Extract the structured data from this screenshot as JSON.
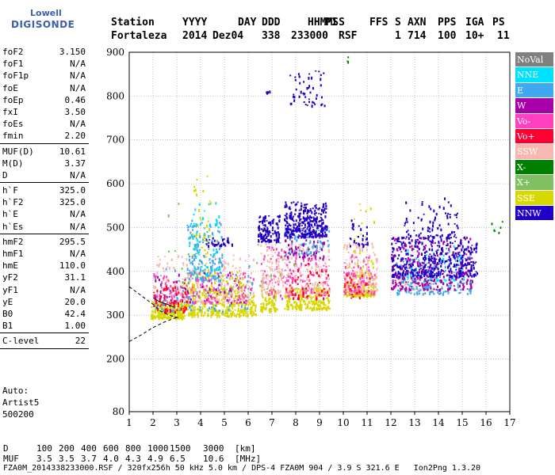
{
  "logo": {
    "line1": "Lowell",
    "line2": "DIGISONDE"
  },
  "header": {
    "labels": [
      "Station",
      "YYYY",
      "DAY",
      "DDD",
      "HHMMSS",
      "P1",
      "FFS",
      "S",
      "AXN",
      "PPS",
      "IGA",
      "PS"
    ],
    "values": [
      "Fortaleza",
      "2014",
      "Dez04",
      "338",
      "233000",
      "RSF",
      "",
      "1",
      "714",
      "100",
      "10+",
      "11"
    ]
  },
  "params_group1": [
    {
      "name": "foF2",
      "value": "3.150"
    },
    {
      "name": "foF1",
      "value": "N/A"
    },
    {
      "name": "foF1p",
      "value": "N/A"
    },
    {
      "name": "foE",
      "value": "N/A"
    },
    {
      "name": "foEp",
      "value": "0.46"
    },
    {
      "name": "fxI",
      "value": "3.50"
    },
    {
      "name": "foEs",
      "value": "N/A"
    },
    {
      "name": "fmin",
      "value": "2.20"
    }
  ],
  "params_group2": [
    {
      "name": "MUF(D)",
      "value": "10.61"
    },
    {
      "name": "M(D)",
      "value": "3.37"
    },
    {
      "name": "D",
      "value": "N/A"
    }
  ],
  "params_group3": [
    {
      "name": "h`F",
      "value": "325.0"
    },
    {
      "name": "h`F2",
      "value": "325.0"
    },
    {
      "name": "h`E",
      "value": "N/A"
    },
    {
      "name": "h`Es",
      "value": "N/A"
    }
  ],
  "params_group4": [
    {
      "name": "hmF2",
      "value": "295.5"
    },
    {
      "name": "hmF1",
      "value": "N/A"
    },
    {
      "name": "hmE",
      "value": "110.0"
    },
    {
      "name": "yF2",
      "value": "31.1"
    },
    {
      "name": "yF1",
      "value": "N/A"
    },
    {
      "name": "yE",
      "value": "20.0"
    },
    {
      "name": "B0",
      "value": "42.4"
    },
    {
      "name": "B1",
      "value": "1.00"
    }
  ],
  "params_group5": [
    {
      "name": "C-level",
      "value": "22"
    }
  ],
  "auto_block": {
    "line1": "Auto:",
    "line2": "Artist5",
    "line3": "500200"
  },
  "legend": [
    {
      "label": "NoVal",
      "color": "#808080"
    },
    {
      "label": "NNE",
      "color": "#00e0ff"
    },
    {
      "label": "E",
      "color": "#40a8f0"
    },
    {
      "label": "W",
      "color": "#a800a8"
    },
    {
      "label": "Vo-",
      "color": "#ff40c0"
    },
    {
      "label": "Vo+",
      "color": "#ff0030"
    },
    {
      "label": "SSW",
      "color": "#f8b8b0"
    },
    {
      "label": "X-",
      "color": "#008000"
    },
    {
      "label": "X+",
      "color": "#80c060"
    },
    {
      "label": "SSE",
      "color": "#d8d800"
    },
    {
      "label": "NNW",
      "color": "#2000c8"
    }
  ],
  "d_scale": {
    "d_label": "D",
    "d_values": [
      "100",
      "200",
      "400",
      "600",
      "800",
      "1000",
      "1500",
      "3000",
      "[km]"
    ],
    "muf_label": "MUF",
    "muf_values": [
      "3.5",
      "3.5",
      "3.7",
      "4.0",
      "4.3",
      "4.9",
      "6.5",
      "10.6",
      "[MHz]"
    ]
  },
  "footer": "FZA0M_2014338233000.RSF / 320fx256h 50 kHz 5.0 km / DPS-4 FZA0M 904 / 3.9 S 321.6 E   Ion2Png 1.3.20",
  "chart_data": {
    "type": "scatter",
    "xlim": [
      1,
      17
    ],
    "ylim": [
      80,
      900
    ],
    "x_ticks": [
      "1",
      "2",
      "3",
      "4",
      "5",
      "6",
      "7",
      "8",
      "9",
      "10",
      "11",
      "12",
      "13",
      "14",
      "15",
      "16",
      "17"
    ],
    "y_ticks": [
      "80",
      "200",
      "300",
      "400",
      "500",
      "600",
      "700",
      "800",
      "900"
    ],
    "y_tick_values": [
      80,
      200,
      300,
      400,
      500,
      600,
      700,
      800,
      900
    ],
    "grid": true,
    "legend_placement": "right",
    "clusters": [
      {
        "series": "SSE",
        "x": [
          1.9,
          3.3
        ],
        "y": [
          295,
          335
        ],
        "density": 260
      },
      {
        "series": "SSE",
        "x": [
          3.3,
          6.3
        ],
        "y": [
          300,
          350
        ],
        "density": 320
      },
      {
        "series": "SSE",
        "x": [
          6.5,
          7.2
        ],
        "y": [
          310,
          360
        ],
        "density": 90
      },
      {
        "series": "SSE",
        "x": [
          7.5,
          9.4
        ],
        "y": [
          315,
          365
        ],
        "density": 220
      },
      {
        "series": "SSE",
        "x": [
          10.0,
          11.3
        ],
        "y": [
          345,
          375
        ],
        "density": 140
      },
      {
        "series": "SSE",
        "x": [
          3.2,
          5.8
        ],
        "y": [
          350,
          400
        ],
        "density": 140
      },
      {
        "series": "SSE",
        "x": [
          3.6,
          4.4
        ],
        "y": [
          400,
          620
        ],
        "density": 40
      },
      {
        "series": "SSE",
        "x": [
          10.2,
          11.3
        ],
        "y": [
          380,
          560
        ],
        "density": 40
      },
      {
        "series": "SSW",
        "x": [
          2.0,
          6.2
        ],
        "y": [
          330,
          440
        ],
        "density": 260
      },
      {
        "series": "SSW",
        "x": [
          6.5,
          9.4
        ],
        "y": [
          350,
          470
        ],
        "density": 260
      },
      {
        "series": "SSW",
        "x": [
          10.0,
          11.4
        ],
        "y": [
          355,
          470
        ],
        "density": 160
      },
      {
        "series": "SSW",
        "x": [
          12.3,
          13.8
        ],
        "y": [
          360,
          420
        ],
        "density": 60
      },
      {
        "series": "E",
        "x": [
          3.4,
          4.9
        ],
        "y": [
          380,
          520
        ],
        "density": 160
      },
      {
        "series": "E",
        "x": [
          2.0,
          6.2
        ],
        "y": [
          310,
          420
        ],
        "density": 100
      },
      {
        "series": "E",
        "x": [
          12.2,
          15.4
        ],
        "y": [
          350,
          440
        ],
        "density": 200
      },
      {
        "series": "E",
        "x": [
          7.5,
          9.4
        ],
        "y": [
          440,
          500
        ],
        "density": 80
      },
      {
        "series": "NNE",
        "x": [
          3.4,
          4.8
        ],
        "y": [
          380,
          560
        ],
        "density": 60
      },
      {
        "series": "NNE",
        "x": [
          12.3,
          14.9
        ],
        "y": [
          380,
          460
        ],
        "density": 60
      },
      {
        "series": "W",
        "x": [
          12.0,
          15.4
        ],
        "y": [
          360,
          480
        ],
        "density": 300
      },
      {
        "series": "W",
        "x": [
          2.0,
          6.0
        ],
        "y": [
          330,
          400
        ],
        "density": 60
      },
      {
        "series": "W",
        "x": [
          7.5,
          9.2
        ],
        "y": [
          430,
          500
        ],
        "density": 70
      },
      {
        "series": "Vo-",
        "x": [
          2.0,
          6.2
        ],
        "y": [
          330,
          400
        ],
        "density": 130
      },
      {
        "series": "Vo-",
        "x": [
          6.5,
          9.4
        ],
        "y": [
          340,
          460
        ],
        "density": 120
      },
      {
        "series": "Vo-",
        "x": [
          10.0,
          11.4
        ],
        "y": [
          350,
          440
        ],
        "density": 80
      },
      {
        "series": "Vo+",
        "x": [
          2.0,
          3.4
        ],
        "y": [
          310,
          370
        ],
        "density": 60
      },
      {
        "series": "Vo+",
        "x": [
          7.5,
          9.4
        ],
        "y": [
          340,
          420
        ],
        "density": 50
      },
      {
        "series": "Vo+",
        "x": [
          10.0,
          11.2
        ],
        "y": [
          340,
          400
        ],
        "density": 30
      },
      {
        "series": "NNW",
        "x": [
          6.4,
          7.3
        ],
        "y": [
          470,
          530
        ],
        "density": 120
      },
      {
        "series": "NNW",
        "x": [
          7.5,
          9.3
        ],
        "y": [
          480,
          560
        ],
        "density": 320
      },
      {
        "series": "NNW",
        "x": [
          7.7,
          9.2
        ],
        "y": [
          780,
          860
        ],
        "density": 50
      },
      {
        "series": "NNW",
        "x": [
          12.0,
          15.6
        ],
        "y": [
          390,
          480
        ],
        "density": 360
      },
      {
        "series": "NNW",
        "x": [
          12.5,
          14.8
        ],
        "y": [
          480,
          570
        ],
        "density": 80
      },
      {
        "series": "NNW",
        "x": [
          4.2,
          5.3
        ],
        "y": [
          460,
          480
        ],
        "density": 30
      },
      {
        "series": "NNW",
        "x": [
          10.2,
          11.0
        ],
        "y": [
          460,
          520
        ],
        "density": 30
      },
      {
        "series": "X+",
        "x": [
          2.5,
          9.0
        ],
        "y": [
          360,
          560
        ],
        "density": 35
      },
      {
        "series": "X-",
        "x": [
          16.2,
          16.8
        ],
        "y": [
          490,
          520
        ],
        "density": 6
      },
      {
        "series": "X-",
        "x": [
          10.0,
          10.3
        ],
        "y": [
          880,
          895
        ],
        "density": 3
      },
      {
        "series": "NNW",
        "x": [
          6.7,
          6.9
        ],
        "y": [
          810,
          820
        ],
        "density": 6
      }
    ],
    "profile_curves": [
      {
        "name": "lower",
        "points": [
          [
            1,
            240
          ],
          [
            1.5,
            255
          ],
          [
            2.0,
            272
          ],
          [
            2.5,
            285
          ],
          [
            3.0,
            295
          ]
        ],
        "style": "dashed"
      },
      {
        "name": "upper",
        "points": [
          [
            1,
            365
          ],
          [
            1.5,
            345
          ],
          [
            2.0,
            325
          ],
          [
            2.3,
            310
          ],
          [
            2.6,
            302
          ],
          [
            2.9,
            296
          ],
          [
            3.1,
            294
          ]
        ],
        "style": "dashed"
      },
      {
        "name": "mid",
        "points": [
          [
            2.0,
            340
          ],
          [
            2.3,
            330
          ],
          [
            2.6,
            325
          ],
          [
            2.9,
            318
          ]
        ],
        "style": "solid"
      }
    ]
  }
}
